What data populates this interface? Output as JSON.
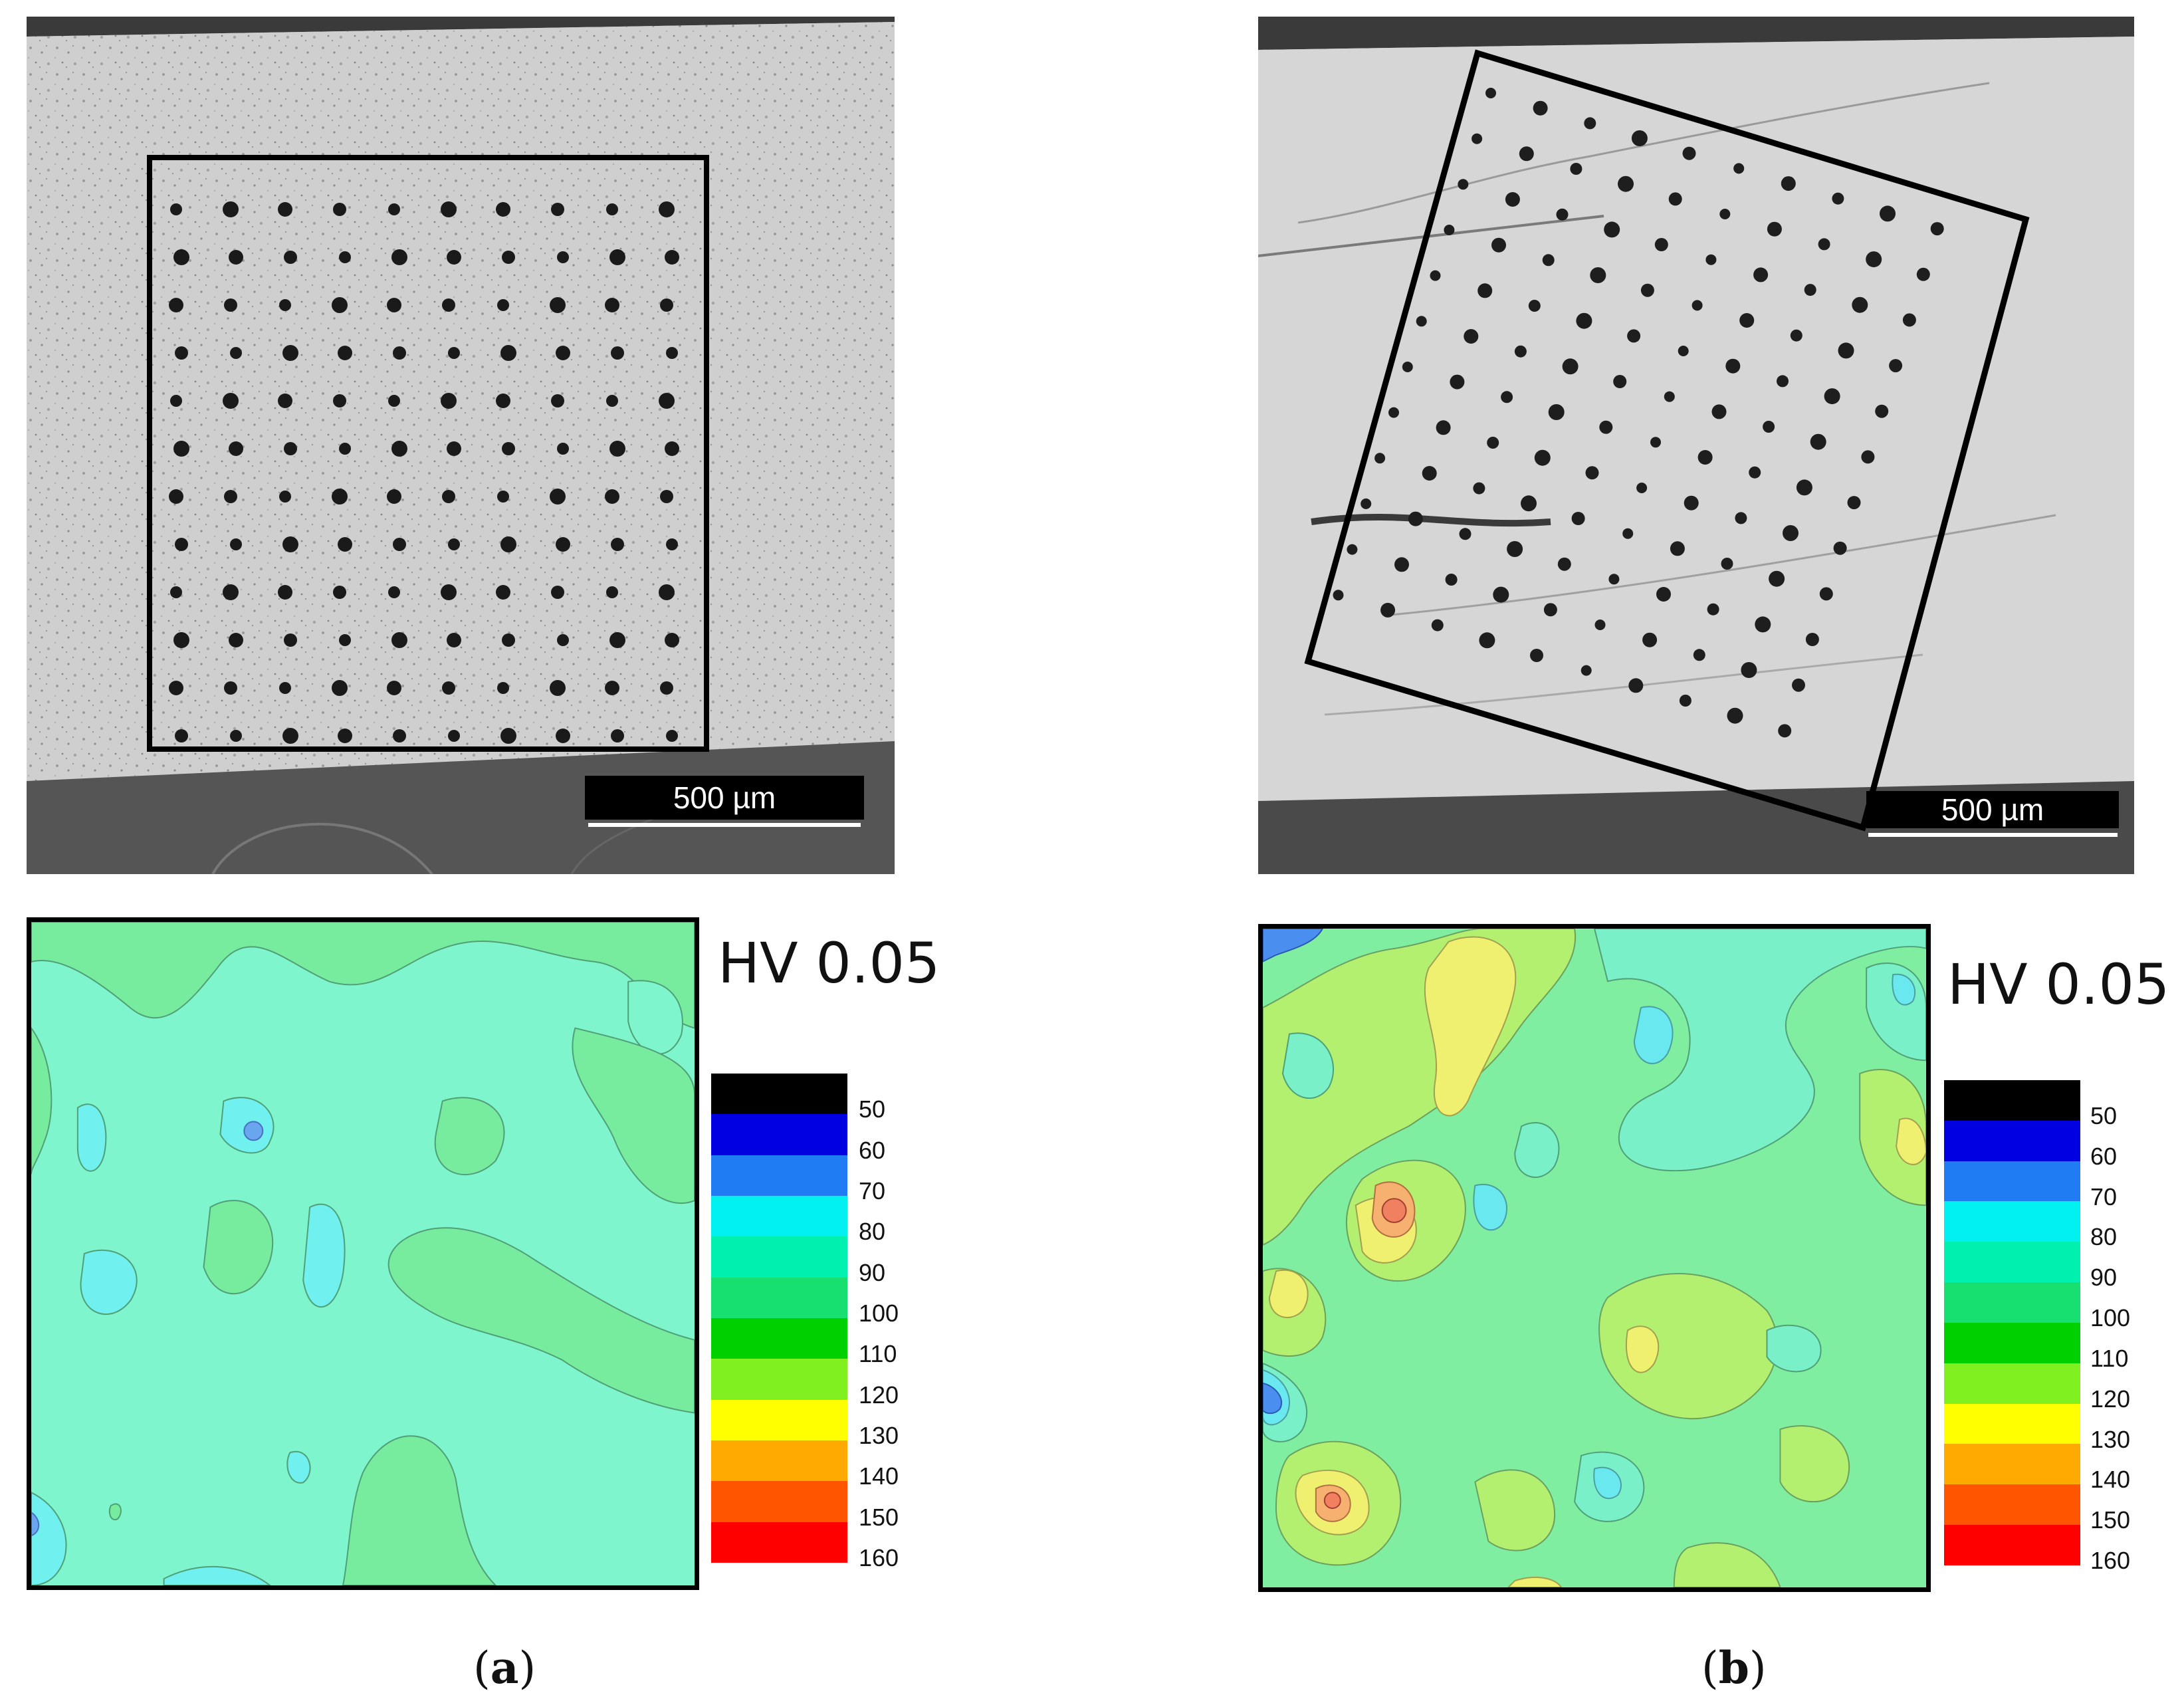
{
  "panels": [
    {
      "id": "a",
      "scale_bar": "500 µm",
      "legend_title": "HV 0.05",
      "caption_open": "(",
      "caption_letter": "a",
      "caption_close": ")"
    },
    {
      "id": "b",
      "scale_bar": "500 µm",
      "legend_title": "HV 0.05",
      "caption_open": "(",
      "caption_letter": "b",
      "caption_close": ")"
    }
  ],
  "legend": {
    "levels": [
      "50",
      "60",
      "70",
      "80",
      "90",
      "100",
      "110",
      "120",
      "130",
      "140",
      "150",
      "160"
    ],
    "colors": [
      "#000000",
      "#0000e0",
      "#1f7cf2",
      "#00f0f0",
      "#00f0b0",
      "#18e070",
      "#00d000",
      "#80f020",
      "#ffff00",
      "#ffaa00",
      "#ff5500",
      "#ff0000"
    ]
  },
  "map_colors": {
    "base_a": "#7ef5cc",
    "base_b": "#80eea0"
  }
}
